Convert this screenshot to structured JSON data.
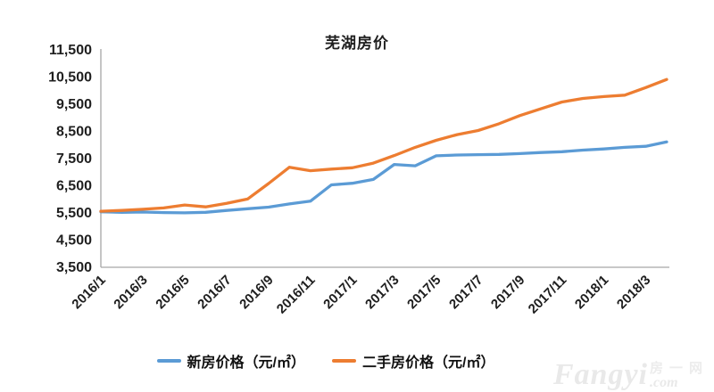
{
  "chart_data": {
    "type": "line",
    "title": "芜湖房价",
    "categories": [
      "2016/1",
      "2016/2",
      "2016/3",
      "2016/4",
      "2016/5",
      "2016/6",
      "2016/7",
      "2016/8",
      "2016/9",
      "2016/10",
      "2016/11",
      "2016/12",
      "2017/1",
      "2017/2",
      "2017/3",
      "2017/4",
      "2017/5",
      "2017/6",
      "2017/7",
      "2017/8",
      "2017/9",
      "2017/10",
      "2017/11",
      "2017/12",
      "2018/1",
      "2018/2",
      "2018/3",
      "2018/4"
    ],
    "series": [
      {
        "name": "新房价格（元/㎡）",
        "color": "#5B9BD5",
        "values": [
          5510,
          5490,
          5500,
          5480,
          5470,
          5490,
          5560,
          5620,
          5680,
          5800,
          5900,
          6500,
          6560,
          6700,
          7250,
          7200,
          7570,
          7600,
          7610,
          7620,
          7650,
          7690,
          7720,
          7780,
          7820,
          7880,
          7920,
          8080
        ]
      },
      {
        "name": "二手房价格（元/㎡）",
        "color": "#ED7D31",
        "values": [
          5530,
          5560,
          5600,
          5650,
          5760,
          5690,
          5820,
          5980,
          6550,
          7150,
          7020,
          7080,
          7130,
          7300,
          7580,
          7880,
          8140,
          8350,
          8500,
          8750,
          9050,
          9300,
          9550,
          9680,
          9750,
          9800,
          10080,
          10380
        ]
      }
    ],
    "xlabel": "",
    "ylabel": "",
    "ylim": [
      3500,
      11500
    ],
    "y_tick_step": 1000,
    "y_tick_labels": [
      "11,500",
      "10,500",
      "9,500",
      "8,500",
      "7,500",
      "6,500",
      "5,500",
      "4,500",
      "3,500"
    ],
    "x_tick_every": 2,
    "x_tick_labels_shown": [
      "2016/1",
      "2016/3",
      "2016/5",
      "2016/7",
      "2016/9",
      "2016/11",
      "2017/1",
      "2017/3",
      "2017/5",
      "2017/7",
      "2017/9",
      "2017/11",
      "2018/1",
      "2018/3"
    ],
    "grid": false,
    "legend_position": "bottom"
  },
  "watermark": {
    "brand": "Fangyi",
    "suffix": ".com",
    "cjk": "房一网"
  },
  "colors": {
    "axis": "#a6a6a6",
    "tick_text": "#1f1f1f",
    "background": "#ffffff"
  }
}
